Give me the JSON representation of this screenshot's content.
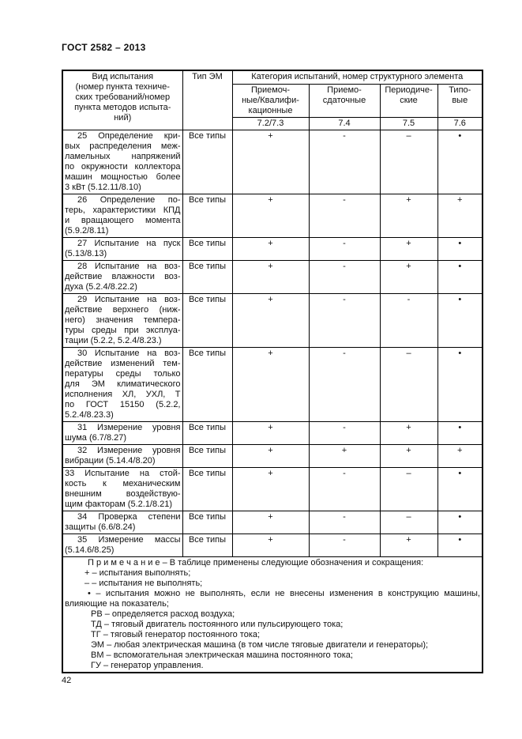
{
  "page": {
    "standard_title": "ГОСТ 2582 – 2013",
    "page_number": "42"
  },
  "table": {
    "header": {
      "col_test_type": "Вид испытания\n(номер пункта техниче-\nских требований/номер\nпункта методов испыта-\nний)",
      "col_em_type": "Тип ЭМ",
      "col_category_group": "Категория испытаний, номер структурного элемента",
      "categories": [
        {
          "label": "Приемоч-\nные/Квалифи-\nкационные",
          "num": "7.2/7.3"
        },
        {
          "label": "Приемо-\nсдаточные",
          "num": "7.4"
        },
        {
          "label": "Периодиче-\nские",
          "num": "7.5"
        },
        {
          "label": "Типо-\nвые",
          "num": "7.6"
        }
      ]
    },
    "rows": [
      {
        "name": "25 Определение кри-\nвых распределения меж-\nламельных напряжений\nпо окружности коллектора\nмашин мощностью более\n3 кВт (5.12.11/8.10)",
        "em_type": "Все типы",
        "marks": [
          "+",
          "-",
          "–",
          "•"
        ]
      },
      {
        "name": "26 Определение по-\nтерь, характеристики КПД\nи вращающего момента\n(5.9.2/8.11)",
        "em_type": "Все типы",
        "marks": [
          "+",
          "-",
          "+",
          "+"
        ]
      },
      {
        "name": "27 Испытание на пуск\n(5.13/8.13)",
        "em_type": "Все типы",
        "marks": [
          "+",
          "-",
          "+",
          "•"
        ]
      },
      {
        "name": "28 Испытание на воз-\nдействие влажности воз-\nдуха (5.2.4/8.22.2)",
        "em_type": "Все типы",
        "marks": [
          "+",
          "-",
          "+",
          "•"
        ]
      },
      {
        "name": "29 Испытание на воз-\nдействие верхнего (ниж-\nнего) значения темпера-\nтуры среды при эксплуа-\nтации (5.2.2, 5.2.4/8.23.)",
        "em_type": "Все типы",
        "marks": [
          "+",
          "-",
          "-",
          "•"
        ]
      },
      {
        "name": "30 Испытание на воз-\nдействие изменений тем-\nпературы среды только\nдля ЭМ климатического\nисполнения ХЛ, УХЛ, Т\nпо ГОСТ 15150 (5.2.2,\n5.2.4/8.23.3)",
        "em_type": "Все типы",
        "marks": [
          "+",
          "-",
          "–",
          "•"
        ]
      },
      {
        "name": "31 Измерение уровня\nшума (6.7/8.27)",
        "em_type": "Все типы",
        "marks": [
          "+",
          "-",
          "+",
          "•"
        ]
      },
      {
        "name": "32 Измерение уровня\nвибрации (5.14.4/8.20)",
        "em_type": "Все типы",
        "marks": [
          "+",
          "+",
          "+",
          "+"
        ]
      },
      {
        "name": "33 Испытание на стой-\nкость к механическим\nвнешним воздействую-\nщим факторам (5.2.1/8.21)",
        "em_type": "Все типы",
        "marks": [
          "+",
          "-",
          "–",
          "•"
        ]
      },
      {
        "name": "34 Проверка степени\nзащиты (6.6/8.24)",
        "em_type": "Все типы",
        "marks": [
          "+",
          "-",
          "–",
          "•"
        ]
      },
      {
        "name": "35 Измерение массы\n(5.14.6/8.25)",
        "em_type": "Все типы",
        "marks": [
          "+",
          "-",
          "+",
          "•"
        ]
      }
    ],
    "note": {
      "intro": "П р и м е ч а н и е –  В таблице применены следующие обозначения и сокращения:",
      "plus": "+ – испытания выполнять;",
      "dash": "– – испытания не выполнять;",
      "bullet": "• – испытания можно не выполнять, если не внесены изменения в конструкцию машины,\nвлияющие на показатель;",
      "rv": "РВ – определяется расход воздуха;",
      "td": "ТД – тяговый двигатель постоянного или пульсирующего тока;",
      "tg": "ТГ – тяговый генератор постоянного тока;",
      "em": "ЭМ – любая электрическая машина (в том числе тяговые двигатели и генераторы);",
      "vm": "ВМ – вспомогательная электрическая машина постоянного тока;",
      "gu": "ГУ – генератор управления."
    }
  }
}
